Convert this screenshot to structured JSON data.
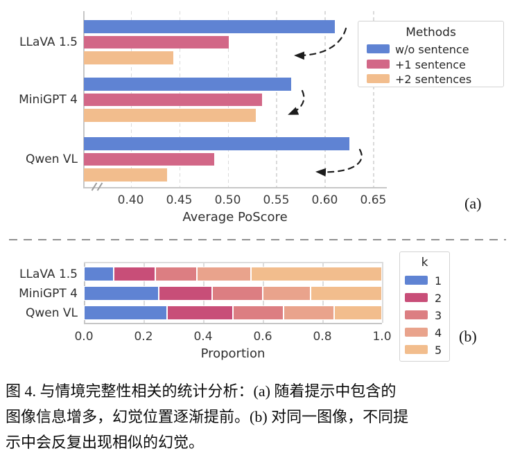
{
  "figure_label": "图 4.",
  "panel_labels": {
    "a": "(a)",
    "b": "(b)"
  },
  "caption": {
    "lines": [
      "图 4. 与情境完整性相关的统计分析：(a) 随着提示中包含的",
      "图像信息增多，幻觉位置逐渐提前。(b) 对同一图像，不同提",
      "示中会反复出现相似的幻觉。"
    ]
  },
  "colors": {
    "blue": "#5f83d3",
    "pink": "#d26787",
    "orange": "#f2bd8d",
    "k2": "#c84e78",
    "k3": "#dc7e82",
    "k4": "#e9a38c",
    "gridline": "#dadada",
    "arrow": "#1c1c1c"
  },
  "chart_data": [
    {
      "id": "a",
      "type": "bar",
      "orientation": "horizontal",
      "xlabel": "Average PoScore",
      "categories": [
        "LLaVA 1.5",
        "MiniGPT 4",
        "Qwen VL"
      ],
      "series": [
        {
          "name": "w/o sentence",
          "color": "#5f83d3",
          "values": [
            0.61,
            0.565,
            0.625
          ]
        },
        {
          "name": "+1 sentence",
          "color": "#d26787",
          "values": [
            0.5,
            0.535,
            0.485
          ]
        },
        {
          "name": "+2 sentences",
          "color": "#f2bd8d",
          "values": [
            0.443,
            0.528,
            0.437
          ]
        }
      ],
      "xlim": [
        0.351,
        0.664
      ],
      "xticks": [
        0.4,
        0.45,
        0.5,
        0.55,
        0.6,
        0.65
      ],
      "xtick_labels": [
        "0.40",
        "0.45",
        "0.50",
        "0.55",
        "0.60",
        "0.65"
      ],
      "legend_title": "Methods",
      "legend_position": "upper right",
      "grid": "dashed-vertical",
      "axis_break": true,
      "annotations": "three dashed curved arrows indicating hallucination position moving earlier"
    },
    {
      "id": "b",
      "type": "stacked-bar",
      "orientation": "horizontal",
      "xlabel": "Proportion",
      "categories": [
        "LLaVA 1.5",
        "MiniGPT 4",
        "Qwen VL"
      ],
      "series": [
        {
          "name": "1",
          "color": "#5f83d3",
          "values": [
            0.1,
            0.25,
            0.28
          ]
        },
        {
          "name": "2",
          "color": "#c84e78",
          "values": [
            0.14,
            0.18,
            0.22
          ]
        },
        {
          "name": "3",
          "color": "#dc7e82",
          "values": [
            0.14,
            0.17,
            0.17
          ]
        },
        {
          "name": "4",
          "color": "#e9a38c",
          "values": [
            0.18,
            0.16,
            0.17
          ]
        },
        {
          "name": "5",
          "color": "#f2bd8d",
          "values": [
            0.44,
            0.24,
            0.16
          ]
        }
      ],
      "xlim": [
        0.0,
        1.0
      ],
      "xticks": [
        0.0,
        0.2,
        0.4,
        0.6,
        0.8,
        1.0
      ],
      "xtick_labels": [
        "0.0",
        "0.2",
        "0.4",
        "0.6",
        "0.8",
        "1.0"
      ],
      "legend_title": "k",
      "legend_position": "right",
      "grid": "solid-vertical"
    }
  ]
}
